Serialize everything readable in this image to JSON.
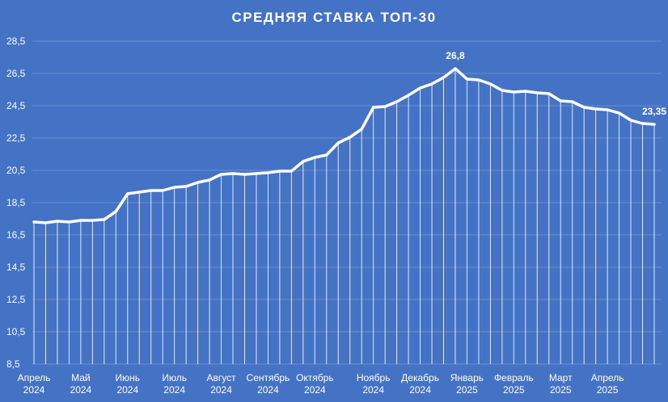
{
  "chart_data": {
    "type": "line",
    "title": "СРЕДНЯЯ СТАВКА ТОП-30",
    "xlabel": "",
    "ylabel": "",
    "ylim": [
      8.5,
      28.5
    ],
    "y_ticks": [
      "8,5",
      "10,5",
      "12,5",
      "14,5",
      "16,5",
      "18,5",
      "20,5",
      "22,5",
      "24,5",
      "26,5",
      "28,5"
    ],
    "grid": true,
    "drop_lines": true,
    "x_labels": [
      {
        "month": "Апрель",
        "year": "2024",
        "index": 0
      },
      {
        "month": "Май",
        "year": "2024",
        "index": 4
      },
      {
        "month": "Июнь",
        "year": "2024",
        "index": 8
      },
      {
        "month": "Июль",
        "year": "2024",
        "index": 12
      },
      {
        "month": "Август",
        "year": "2024",
        "index": 16
      },
      {
        "month": "Сентябрь",
        "year": "2024",
        "index": 20
      },
      {
        "month": "Октябрь",
        "year": "2024",
        "index": 24
      },
      {
        "month": "Ноябрь",
        "year": "2024",
        "index": 29
      },
      {
        "month": "Декабрь",
        "year": "2024",
        "index": 33
      },
      {
        "month": "Январь",
        "year": "2025",
        "index": 37
      },
      {
        "month": "Февраль",
        "year": "2025",
        "index": 41
      },
      {
        "month": "Март",
        "year": "2025",
        "index": 45
      },
      {
        "month": "Апрель",
        "year": "2025",
        "index": 49
      }
    ],
    "values": [
      17.3,
      17.25,
      17.35,
      17.3,
      17.4,
      17.4,
      17.45,
      17.95,
      19.05,
      19.15,
      19.25,
      19.25,
      19.45,
      19.5,
      19.75,
      19.9,
      20.25,
      20.3,
      20.25,
      20.3,
      20.35,
      20.45,
      20.45,
      21.05,
      21.3,
      21.45,
      22.2,
      22.55,
      23.05,
      24.4,
      24.45,
      24.75,
      25.15,
      25.6,
      25.85,
      26.25,
      26.8,
      26.15,
      26.1,
      25.85,
      25.45,
      25.35,
      25.4,
      25.3,
      25.25,
      24.8,
      24.75,
      24.4,
      24.3,
      24.25,
      24.05,
      23.6,
      23.4,
      23.35
    ],
    "annotations": [
      {
        "index": 36,
        "text": "26,8"
      },
      {
        "index": 53,
        "text": "23,35"
      }
    ],
    "colors": {
      "background": "#4472c4",
      "line": "#ffffff",
      "grid": "#6d90d2"
    }
  }
}
